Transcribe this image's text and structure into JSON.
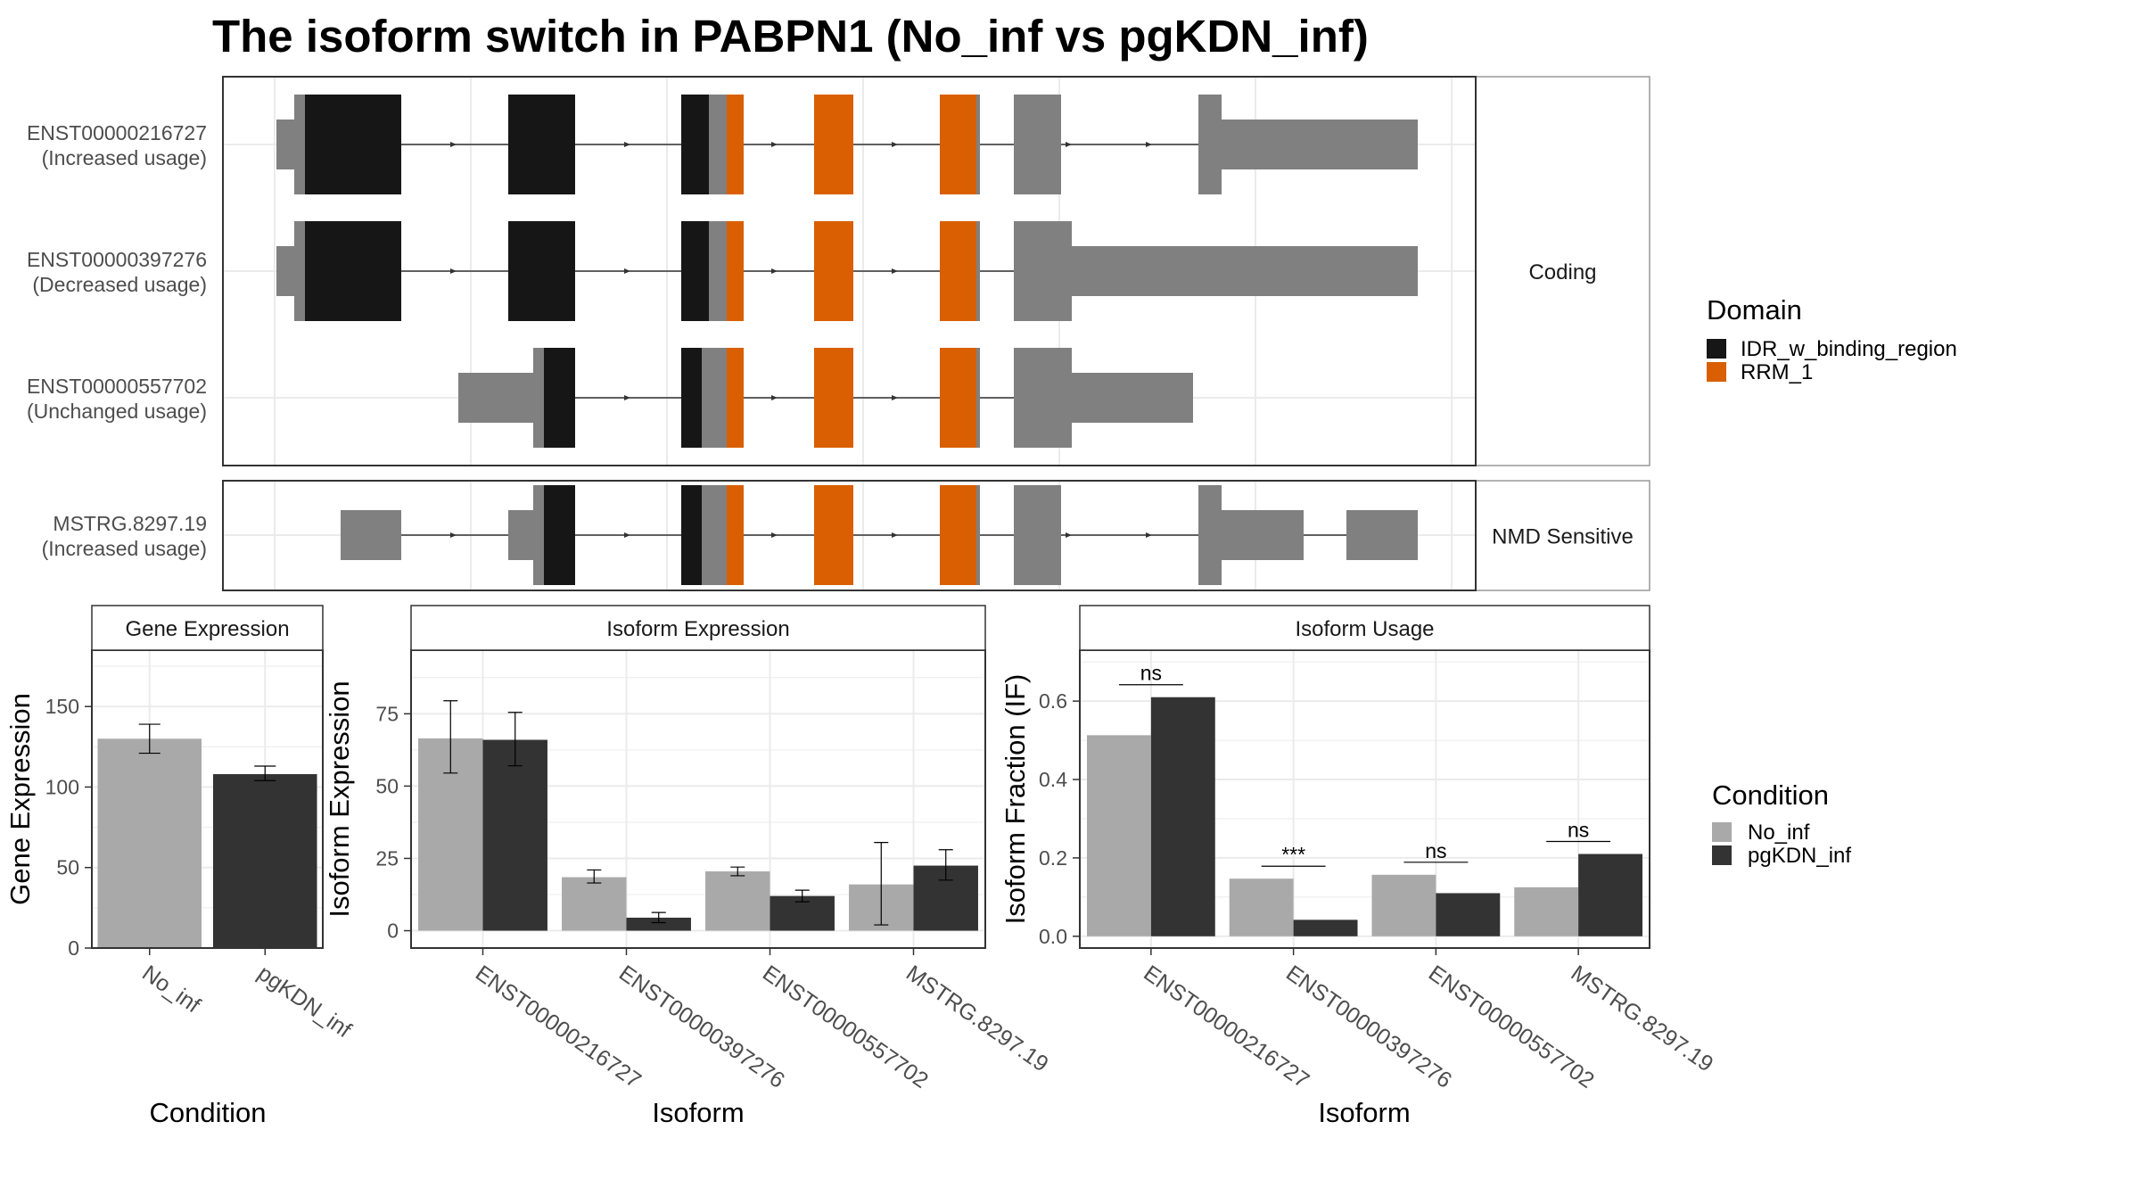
{
  "title": "The isoform switch in PABPN1 (No_inf vs pgKDN_inf)",
  "colors": {
    "idr": "#161616",
    "rrm": "#D95F02",
    "utr": "#808080",
    "no_inf": "#A9A9A9",
    "pgkdn_inf": "#333333",
    "grid": "#EBEBEB",
    "panel_border": "#333333",
    "strip_border": "#999999"
  },
  "structure": {
    "facets": [
      "Coding",
      "NMD Sensitive"
    ],
    "isoforms": [
      {
        "id": "ENST00000216727",
        "usage": "(Increased usage)",
        "facet": "Coding"
      },
      {
        "id": "ENST00000397276",
        "usage": "(Decreased usage)",
        "facet": "Coding"
      },
      {
        "id": "ENST00000557702",
        "usage": "(Unchanged usage)",
        "facet": "Coding"
      },
      {
        "id": "MSTRG.8297.19",
        "usage": "(Increased usage)",
        "facet": "NMD Sensitive"
      }
    ],
    "legend": {
      "title": "Domain",
      "items": [
        {
          "label": "IDR_w_binding_region",
          "color": "#161616"
        },
        {
          "label": "RRM_1",
          "color": "#D95F02"
        }
      ]
    }
  },
  "chart_data": [
    {
      "type": "bar",
      "title": "Gene Expression",
      "xlabel": "Condition",
      "ylabel": "Gene Expression",
      "ylim": [
        0,
        185
      ],
      "yticks": [
        0,
        50,
        100,
        150
      ],
      "categories": [
        "No_inf",
        "pgKDN_inf"
      ],
      "values": [
        130,
        108
      ],
      "errors": [
        [
          121,
          139
        ],
        [
          104,
          113
        ]
      ]
    },
    {
      "type": "bar",
      "title": "Isoform Expression",
      "xlabel": "Isoform",
      "ylabel": "Isoform Expression",
      "ylim": [
        -6,
        97
      ],
      "yticks": [
        0,
        25,
        50,
        75
      ],
      "categories": [
        "ENST00000216727",
        "ENST00000397276",
        "ENST00000557702",
        "MSTRG.8297.19"
      ],
      "series": [
        {
          "name": "No_inf",
          "values": [
            66.5,
            18.5,
            20.5,
            16
          ],
          "errors": [
            [
              54.5,
              79.5
            ],
            [
              16.5,
              21
            ],
            [
              19,
              22
            ],
            [
              2,
              30.5
            ]
          ]
        },
        {
          "name": "pgKDN_inf",
          "values": [
            66,
            4.5,
            12,
            22.5
          ],
          "errors": [
            [
              57,
              75.5
            ],
            [
              2.8,
              6.3
            ],
            [
              10,
              14
            ],
            [
              17.5,
              28
            ]
          ]
        }
      ]
    },
    {
      "type": "bar",
      "title": "Isoform Usage",
      "xlabel": "Isoform",
      "ylabel": "Isoform Fraction (IF)",
      "ylim": [
        -0.03,
        0.73
      ],
      "yticks": [
        "0.0",
        "0.2",
        "0.4",
        "0.6"
      ],
      "categories": [
        "ENST00000216727",
        "ENST00000397276",
        "ENST00000557702",
        "MSTRG.8297.19"
      ],
      "series": [
        {
          "name": "No_inf",
          "values": [
            0.513,
            0.147,
            0.157,
            0.125
          ]
        },
        {
          "name": "pgKDN_inf",
          "values": [
            0.61,
            0.042,
            0.11,
            0.21
          ]
        }
      ],
      "significance": [
        "ns",
        "***",
        "ns",
        "ns"
      ]
    }
  ],
  "condition_legend": {
    "title": "Condition",
    "items": [
      {
        "label": "No_inf",
        "color": "#A9A9A9"
      },
      {
        "label": "pgKDN_inf",
        "color": "#333333"
      }
    ]
  }
}
